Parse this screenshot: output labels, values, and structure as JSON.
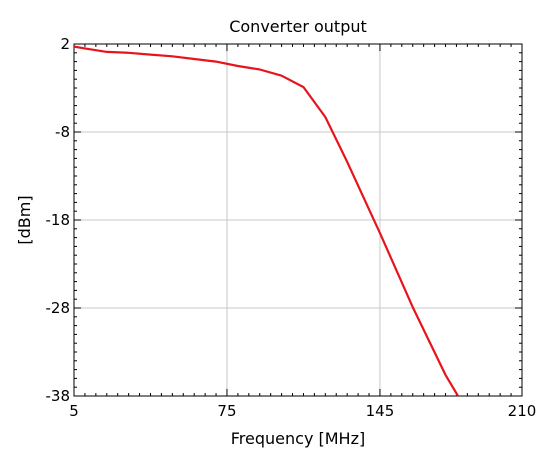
{
  "chart_data": {
    "type": "line",
    "title": "Converter output",
    "xlabel": "Frequency [MHz]",
    "ylabel": "[dBm]",
    "xlim": [
      5,
      210
    ],
    "ylim": [
      -38,
      2
    ],
    "xticks": [
      5,
      75,
      145,
      210
    ],
    "yticks": [
      2,
      -8,
      -18,
      -28,
      -38
    ],
    "xtick_labels": [
      "5",
      "75",
      "145",
      "210"
    ],
    "ytick_labels": [
      "2",
      "-8",
      "-18",
      "-28",
      "-38"
    ],
    "grid": true,
    "line_color": "#e8141b",
    "series": [
      {
        "x": [
          5,
          10,
          20,
          30,
          40,
          50,
          60,
          70,
          80,
          90,
          100,
          110,
          120,
          130,
          145,
          160,
          175,
          185,
          195
        ],
        "values": [
          1.7,
          1.5,
          1.1,
          1.0,
          0.8,
          0.6,
          0.3,
          0.0,
          -0.5,
          -0.9,
          -1.6,
          -2.9,
          -6.3,
          -11.4,
          -19.5,
          -27.9,
          -35.6,
          -39.8,
          -41.8
        ]
      }
    ]
  }
}
